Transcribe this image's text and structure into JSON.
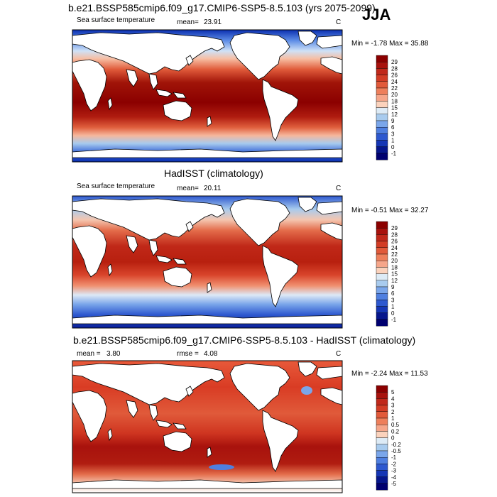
{
  "season": "JJA",
  "panels": [
    {
      "title": "b.e21.BSSP585cmip6.f09_g17.CMIP6-SSP5-8.5.103 (yrs 2075-2099)",
      "variable": "Sea surface temperature",
      "stat_label": "mean=",
      "stat_value": "23.91",
      "units": "C",
      "minmax": "Min =  -1.78 Max =  35.88",
      "colorbar_labels": [
        "29",
        "28",
        "26",
        "24",
        "22",
        "20",
        "18",
        "15",
        "12",
        "9",
        "6",
        "3",
        "1",
        "0",
        "-1"
      ],
      "colorbar_colors": [
        "#8b0000",
        "#a8120d",
        "#c0281a",
        "#d23c25",
        "#e15a3a",
        "#ee7f5b",
        "#f6a68a",
        "#fbd2bc",
        "#ddebf6",
        "#a8cbee",
        "#7aa6ea",
        "#4f7fe0",
        "#2d58cf",
        "#1536b5",
        "#06168c",
        "#000070"
      ]
    },
    {
      "title": "HadISST (climatology)",
      "variable": "Sea surface temperature",
      "stat_label": "mean=",
      "stat_value": "20.11",
      "units": "C",
      "minmax": "Min =  -0.51 Max =  32.27",
      "colorbar_labels": [
        "29",
        "28",
        "26",
        "24",
        "22",
        "20",
        "18",
        "15",
        "12",
        "9",
        "6",
        "3",
        "1",
        "0",
        "-1"
      ],
      "colorbar_colors": [
        "#8b0000",
        "#a8120d",
        "#c0281a",
        "#d23c25",
        "#e15a3a",
        "#ee7f5b",
        "#f6a68a",
        "#fbd2bc",
        "#ddebf6",
        "#a8cbee",
        "#7aa6ea",
        "#4f7fe0",
        "#2d58cf",
        "#1536b5",
        "#06168c",
        "#000070"
      ]
    },
    {
      "title": "b.e21.BSSP585cmip6.f09_g17.CMIP6-SSP5-8.5.103 - HadISST (climatology)",
      "variable": "mean =",
      "stat_label": "",
      "stat_value": "3.80",
      "rmse_label": "rmse =",
      "rmse_value": "4.08",
      "units": "C",
      "minmax": "Min =  -2.24 Max =  11.53",
      "colorbar_labels": [
        "5",
        "4",
        "3",
        "2",
        "1",
        "0.5",
        "0.2",
        "0",
        "-0.2",
        "-0.5",
        "-1",
        "-2",
        "-3",
        "-4",
        "-5"
      ],
      "colorbar_colors": [
        "#8b0000",
        "#a8120d",
        "#c0281a",
        "#d23c25",
        "#e15a3a",
        "#ee7f5b",
        "#f6a68a",
        "#fbd2bc",
        "#ddebf6",
        "#a8cbee",
        "#7aa6ea",
        "#4f7fe0",
        "#2d58cf",
        "#1536b5",
        "#06168c",
        "#000070"
      ]
    }
  ]
}
